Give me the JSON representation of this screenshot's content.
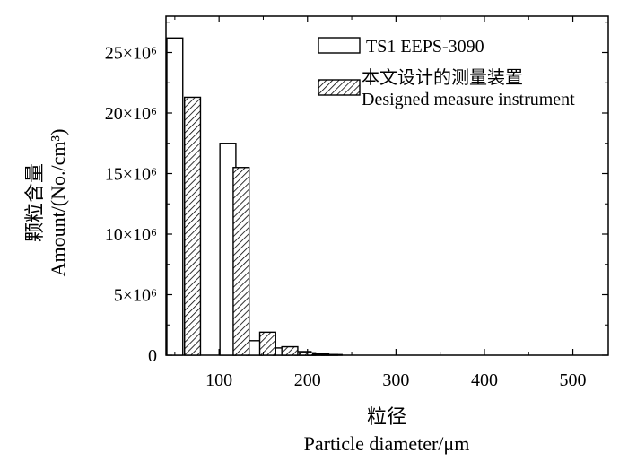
{
  "chart_data": {
    "type": "bar",
    "xlabel_cn": "粒径",
    "xlabel_en": "Particle diameter/μm",
    "ylabel_cn": "颗粒含量",
    "ylabel_en": "Amount/(No./cm³)",
    "xlim": [
      40,
      540
    ],
    "ylim": [
      0,
      28000000
    ],
    "xticks": [
      {
        "value": 100,
        "label": "100"
      },
      {
        "value": 200,
        "label": "200"
      },
      {
        "value": 300,
        "label": "300"
      },
      {
        "value": 400,
        "label": "400"
      },
      {
        "value": 500,
        "label": "500"
      }
    ],
    "yticks": [
      {
        "value": 0,
        "label": "0"
      },
      {
        "value": 5000000,
        "label": "5×10⁶"
      },
      {
        "value": 10000000,
        "label": "10×10⁶"
      },
      {
        "value": 15000000,
        "label": "15×10⁶"
      },
      {
        "value": 20000000,
        "label": "20×10⁶"
      },
      {
        "value": 25000000,
        "label": "25×10⁶"
      }
    ],
    "bar_width": 18,
    "series": [
      {
        "name": "TS1 EEPS-3090",
        "style": "open",
        "x": [
          50,
          110,
          140,
          170,
          195,
          210,
          225
        ],
        "values": [
          26200000,
          17500000,
          1200000,
          600000,
          300000,
          100000,
          50000
        ]
      },
      {
        "name_cn": "本文设计的测量装置",
        "name_en": "Designed measure instrument",
        "style": "hatched",
        "x": [
          70,
          125,
          155,
          180,
          200,
          215,
          230
        ],
        "values": [
          21300000,
          15500000,
          1900000,
          700000,
          200000,
          100000,
          50000
        ]
      }
    ]
  }
}
